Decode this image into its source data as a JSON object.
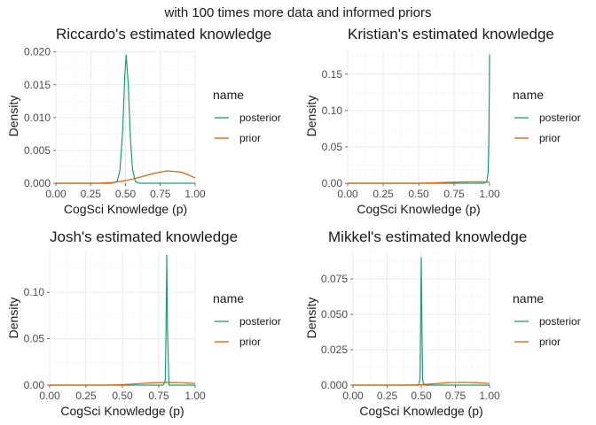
{
  "figure": {
    "suptitle": "with 100 times more data and informed priors"
  },
  "colors": {
    "posterior": "#1b9e77",
    "prior": "#d95f02"
  },
  "chart_data": [
    {
      "type": "line",
      "title": "Riccardo's estimated knowledge",
      "xlabel": "CogSci Knowledge (p)",
      "ylabel": "Density",
      "xlim": [
        0,
        1
      ],
      "ylim": [
        0,
        0.0205
      ],
      "xticks": [
        0,
        0.25,
        0.5,
        0.75,
        1
      ],
      "xtick_labels": [
        "0.00",
        "0.25",
        "0.50",
        "0.75",
        "1.00"
      ],
      "yticks": [
        0,
        0.005,
        0.01,
        0.015,
        0.02
      ],
      "ytick_labels": [
        "0.000",
        "0.005",
        "0.010",
        "0.015",
        "0.020"
      ],
      "grid": true,
      "legend": {
        "title": "name",
        "position": "right",
        "entries": [
          "posterior",
          "prior"
        ]
      },
      "series": [
        {
          "name": "posterior",
          "x": [
            0,
            0.4,
            0.44,
            0.46,
            0.48,
            0.495,
            0.505,
            0.52,
            0.535,
            0.55,
            0.57,
            0.6,
            1
          ],
          "y": [
            0,
            0,
            0.0003,
            0.002,
            0.008,
            0.0165,
            0.0195,
            0.015,
            0.007,
            0.0022,
            0.0003,
            0,
            0
          ]
        },
        {
          "name": "prior",
          "x": [
            0,
            0.3,
            0.4,
            0.5,
            0.6,
            0.7,
            0.8,
            0.9,
            0.95,
            1
          ],
          "y": [
            0,
            0,
            0.0001,
            0.0004,
            0.0009,
            0.0015,
            0.0019,
            0.0017,
            0.0013,
            0.0008
          ]
        }
      ]
    },
    {
      "type": "line",
      "title": "Kristian's estimated knowledge",
      "xlabel": "CogSci Knowledge (p)",
      "ylabel": "Density",
      "xlim": [
        0,
        1
      ],
      "ylim": [
        0,
        0.185
      ],
      "xticks": [
        0,
        0.25,
        0.5,
        0.75,
        1
      ],
      "xtick_labels": [
        "0.00",
        "0.25",
        "0.50",
        "0.75",
        "1.00"
      ],
      "yticks": [
        0,
        0.05,
        0.1,
        0.15
      ],
      "ytick_labels": [
        "0.00",
        "0.05",
        "0.10",
        "0.15"
      ],
      "grid": true,
      "legend": {
        "title": "name",
        "position": "right",
        "entries": [
          "posterior",
          "prior"
        ]
      },
      "series": [
        {
          "name": "posterior",
          "x": [
            0,
            0.96,
            0.98,
            0.99,
            0.995,
            1
          ],
          "y": [
            0,
            0,
            0.002,
            0.015,
            0.06,
            0.177
          ]
        },
        {
          "name": "prior",
          "x": [
            0,
            0.5,
            0.6,
            0.7,
            0.8,
            0.9,
            0.95,
            1
          ],
          "y": [
            0,
            0,
            0.0005,
            0.0012,
            0.0018,
            0.0022,
            0.002,
            0.0015
          ]
        }
      ]
    },
    {
      "type": "line",
      "title": "Josh's estimated knowledge",
      "xlabel": "CogSci Knowledge (p)",
      "ylabel": "Density",
      "xlim": [
        0,
        1
      ],
      "ylim": [
        0,
        0.145
      ],
      "xticks": [
        0,
        0.25,
        0.5,
        0.75,
        1
      ],
      "xtick_labels": [
        "0.00",
        "0.25",
        "0.50",
        "0.75",
        "1.00"
      ],
      "yticks": [
        0,
        0.05,
        0.1
      ],
      "ytick_labels": [
        "0.00",
        "0.05",
        "0.10"
      ],
      "grid": true,
      "legend": {
        "title": "name",
        "position": "right",
        "entries": [
          "posterior",
          "prior"
        ]
      },
      "series": [
        {
          "name": "posterior",
          "x": [
            0,
            0.78,
            0.795,
            0.8,
            0.805,
            0.81,
            0.82,
            1
          ],
          "y": [
            0,
            0,
            0.005,
            0.06,
            0.14,
            0.06,
            0,
            0
          ]
        },
        {
          "name": "prior",
          "x": [
            0,
            0.4,
            0.5,
            0.6,
            0.7,
            0.8,
            0.9,
            1
          ],
          "y": [
            0,
            0,
            0.0005,
            0.0015,
            0.0025,
            0.003,
            0.0028,
            0.0018
          ]
        }
      ]
    },
    {
      "type": "line",
      "title": "Mikkel's estimated knowledge",
      "xlabel": "CogSci Knowledge (p)",
      "ylabel": "Density",
      "xlim": [
        0,
        1
      ],
      "ylim": [
        0,
        0.095
      ],
      "xticks": [
        0,
        0.25,
        0.5,
        0.75,
        1
      ],
      "xtick_labels": [
        "0.00",
        "0.25",
        "0.50",
        "0.75",
        "1.00"
      ],
      "yticks": [
        0,
        0.025,
        0.05,
        0.075
      ],
      "ytick_labels": [
        "0.000",
        "0.025",
        "0.050",
        "0.075"
      ],
      "grid": true,
      "legend": {
        "title": "name",
        "position": "right",
        "entries": [
          "posterior",
          "prior"
        ]
      },
      "series": [
        {
          "name": "posterior",
          "x": [
            0,
            0.48,
            0.49,
            0.495,
            0.5,
            0.505,
            0.51,
            0.52,
            1
          ],
          "y": [
            0,
            0,
            0.004,
            0.04,
            0.09,
            0.04,
            0.004,
            0,
            0
          ]
        },
        {
          "name": "prior",
          "x": [
            0,
            0.4,
            0.5,
            0.6,
            0.7,
            0.8,
            0.9,
            1
          ],
          "y": [
            0,
            0,
            0.0003,
            0.001,
            0.0018,
            0.002,
            0.0018,
            0.0012
          ]
        }
      ]
    }
  ]
}
